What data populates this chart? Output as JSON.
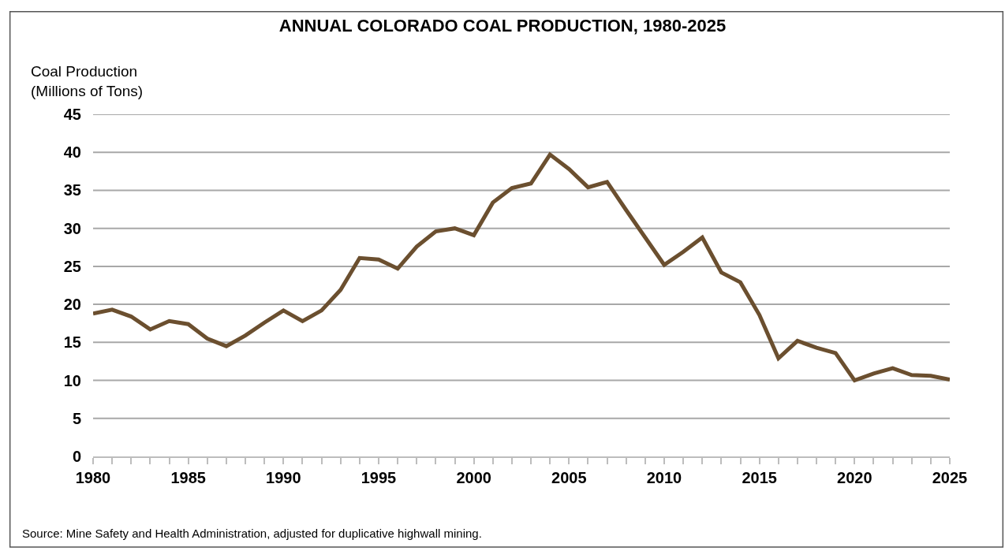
{
  "chart_data": {
    "type": "line",
    "title": "ANNUAL COLORADO COAL PRODUCTION, 1980-2025",
    "ylabel": "Coal Production\n(Millions of Tons)",
    "annotations": [
      "Source: Mine Safety and Health Administration, adjusted for duplicative highwall mining."
    ],
    "x": [
      1980,
      1981,
      1982,
      1983,
      1984,
      1985,
      1986,
      1987,
      1988,
      1989,
      1990,
      1991,
      1992,
      1993,
      1994,
      1995,
      1996,
      1997,
      1998,
      1999,
      2000,
      2001,
      2002,
      2003,
      2004,
      2005,
      2006,
      2007,
      2008,
      2009,
      2010,
      2011,
      2012,
      2013,
      2014,
      2015,
      2016,
      2017,
      2018,
      2019,
      2020,
      2021,
      2022,
      2023,
      2024,
      2025
    ],
    "series": [
      {
        "color": "#6b4f2f",
        "values": [
          18.8,
          19.3,
          18.4,
          16.7,
          17.8,
          17.4,
          15.5,
          14.5,
          15.9,
          17.6,
          19.2,
          17.8,
          19.2,
          21.9,
          26.1,
          25.9,
          24.7,
          27.6,
          29.6,
          30.0,
          29.1,
          33.4,
          35.3,
          35.9,
          39.7,
          37.8,
          35.4,
          36.1,
          32.4,
          28.8,
          25.2,
          26.9,
          28.8,
          24.2,
          22.9,
          18.6,
          12.9,
          15.2,
          14.3,
          13.6,
          10.0,
          10.9,
          11.6,
          10.7,
          10.6,
          10.1
        ]
      }
    ],
    "xlim": [
      1980,
      2025
    ],
    "xticks": [
      1980,
      {
        "value": 1981,
        "label": null
      },
      {
        "value": 1982,
        "label": null
      },
      {
        "value": 1983,
        "label": null
      },
      {
        "value": 1984,
        "label": null
      },
      1985,
      {
        "value": 1986,
        "label": null
      },
      {
        "value": 1987,
        "label": null
      },
      {
        "value": 1988,
        "label": null
      },
      {
        "value": 1989,
        "label": null
      },
      1990,
      {
        "value": 1991,
        "label": null
      },
      {
        "value": 1992,
        "label": null
      },
      {
        "value": 1993,
        "label": null
      },
      {
        "value": 1994,
        "label": null
      },
      1995,
      {
        "value": 1996,
        "label": null
      },
      {
        "value": 1997,
        "label": null
      },
      {
        "value": 1998,
        "label": null
      },
      {
        "value": 1999,
        "label": null
      },
      2000,
      {
        "value": 2001,
        "label": null
      },
      {
        "value": 2002,
        "label": null
      },
      {
        "value": 2003,
        "label": null
      },
      {
        "value": 2004,
        "label": null
      },
      2005,
      {
        "value": 2006,
        "label": null
      },
      {
        "value": 2007,
        "label": null
      },
      {
        "value": 2008,
        "label": null
      },
      {
        "value": 2009,
        "label": null
      },
      2010,
      {
        "value": 2011,
        "label": null
      },
      {
        "value": 2012,
        "label": null
      },
      {
        "value": 2013,
        "label": null
      },
      {
        "value": 2014,
        "label": null
      },
      2015,
      {
        "value": 2016,
        "label": null
      },
      {
        "value": 2017,
        "label": null
      },
      {
        "value": 2018,
        "label": null
      },
      {
        "value": 2019,
        "label": null
      },
      2020,
      {
        "value": 2021,
        "label": null
      },
      {
        "value": 2022,
        "label": null
      },
      {
        "value": 2023,
        "label": null
      },
      {
        "value": 2024,
        "label": null
      },
      2025
    ],
    "ylim": [
      0,
      45
    ],
    "yticks": [
      0,
      5,
      10,
      15,
      20,
      25,
      30,
      35,
      40,
      45
    ],
    "grid": "y",
    "marker": "none",
    "line_style": "solid"
  }
}
